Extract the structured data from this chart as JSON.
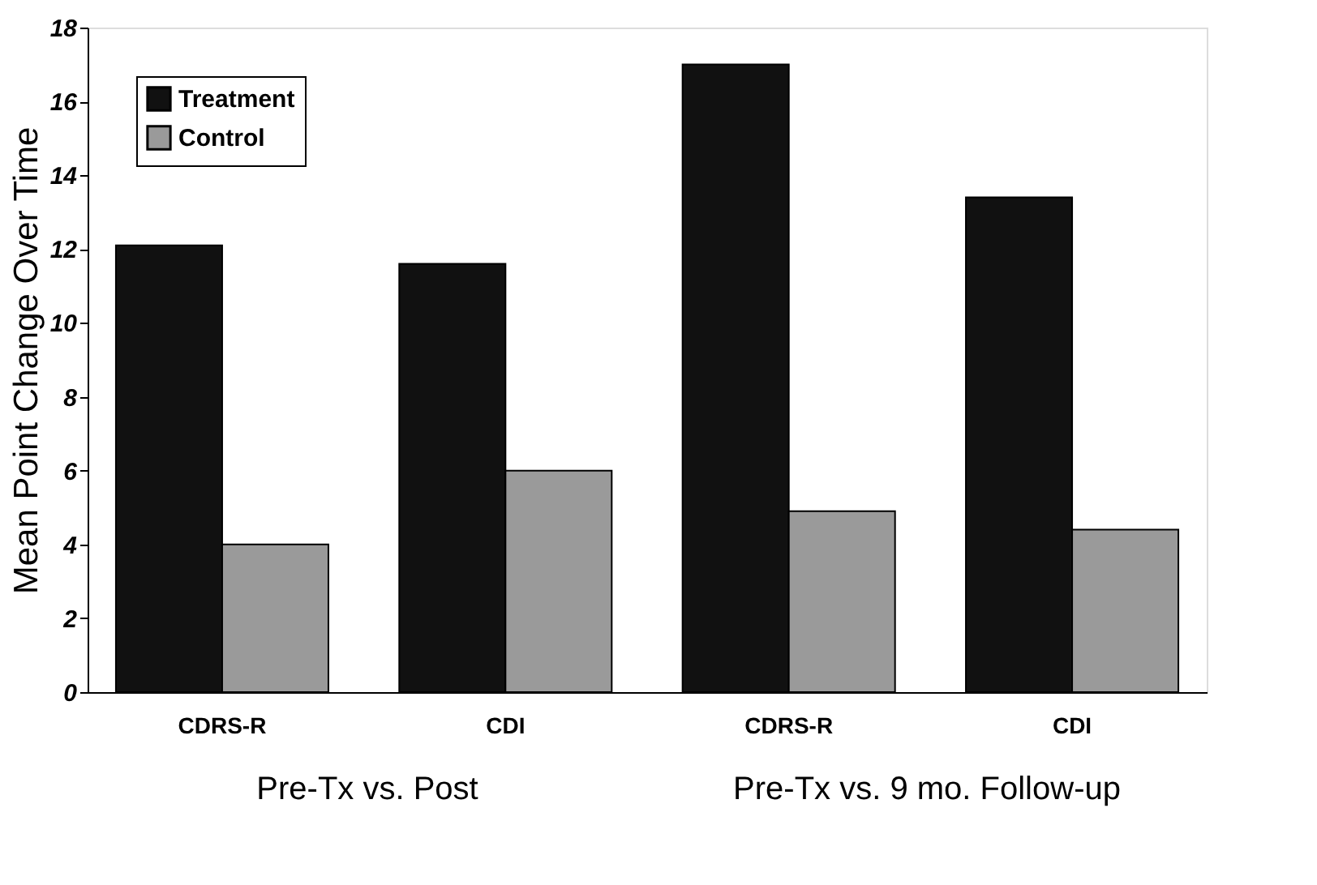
{
  "chart_data": {
    "type": "bar",
    "ylabel": "Mean Point Change Over Time",
    "categories": [
      "CDRS-R",
      "CDI",
      "CDRS-R",
      "CDI"
    ],
    "series": [
      {
        "name": "Treatment",
        "color": "#111111",
        "values": [
          12.1,
          11.6,
          17.0,
          13.4
        ]
      },
      {
        "name": "Control",
        "color": "#9a9a9a",
        "values": [
          4.0,
          6.0,
          4.9,
          4.4
        ]
      }
    ],
    "ylim": [
      0,
      18
    ],
    "yticks": [
      0,
      2,
      4,
      6,
      8,
      10,
      12,
      14,
      16,
      18
    ],
    "grid": false,
    "legend": "top left",
    "annotations": [
      "Pre-Tx vs. Post",
      "Pre-Tx vs. 9 mo. Follow-up"
    ]
  }
}
